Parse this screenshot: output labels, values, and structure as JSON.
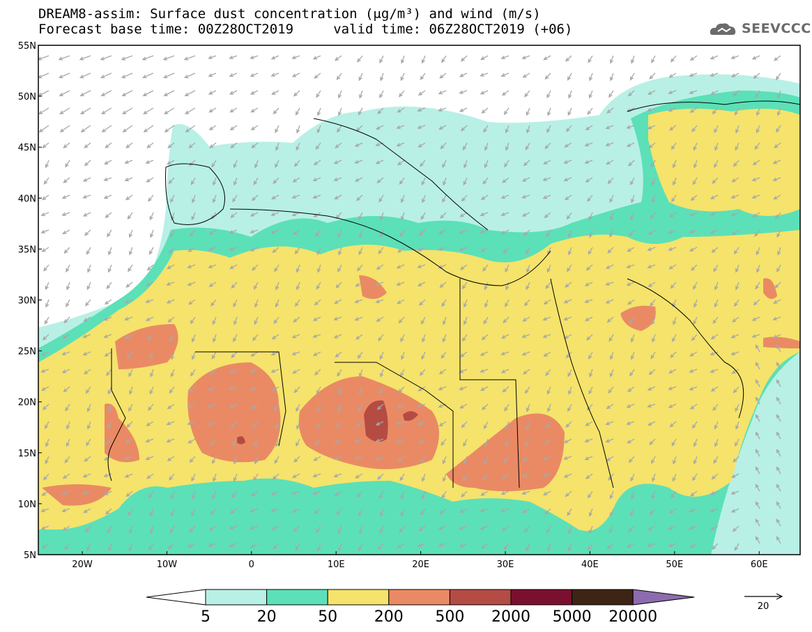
{
  "header": {
    "title_line1": "DREAM8-assim: Surface dust concentration (μg/m³) and wind (m/s)",
    "title_line2": "Forecast base time: 00Z28OCT2019     valid time: 06Z28OCT2019 (+06)"
  },
  "logo": {
    "text": "SEEVCCC",
    "icon": "cloud-icon"
  },
  "map": {
    "lat_labels": [
      "55N",
      "50N",
      "45N",
      "40N",
      "35N",
      "30N",
      "25N",
      "20N",
      "15N",
      "10N",
      "5N"
    ],
    "lon_labels": [
      "20W",
      "10W",
      "0",
      "10E",
      "20E",
      "30E",
      "40E",
      "50E",
      "60E"
    ]
  },
  "colorbar": {
    "thresholds": [
      "5",
      "20",
      "50",
      "200",
      "500",
      "2000",
      "5000",
      "20000"
    ],
    "colors": [
      "#b8f0e6",
      "#5ce0b8",
      "#f5e36b",
      "#ea8a64",
      "#b44c44",
      "#7a1030",
      "#3d2414",
      "#8c6cae"
    ]
  },
  "wind_legend": {
    "value": "20"
  },
  "colors": {
    "ocean_bg": "#ffffff",
    "vector": "#a8a8a8",
    "coast": "#000000"
  }
}
